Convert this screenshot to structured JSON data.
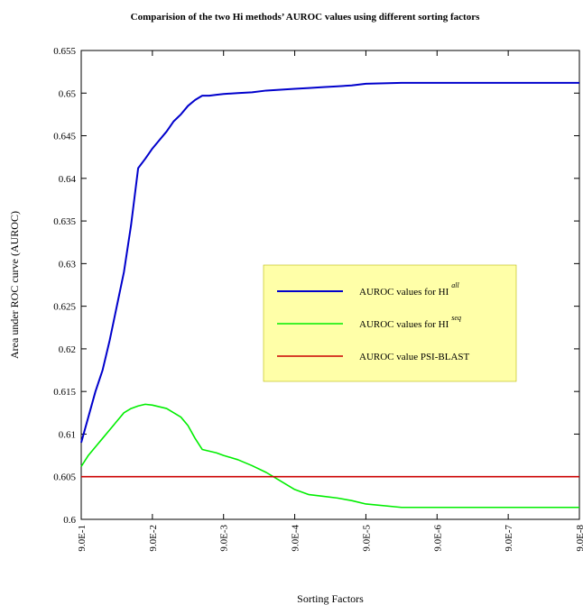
{
  "chart_data": {
    "type": "line",
    "title": "Comparision of the two Hi methods’ AUROC values using different sorting factors",
    "xlabel": "Sorting Factors",
    "ylabel": "Area under ROC curve (AUROC)",
    "ylim": [
      0.6,
      0.655
    ],
    "yticks": [
      "0.6",
      "0.605",
      "0.61",
      "0.615",
      "0.62",
      "0.625",
      "0.63",
      "0.635",
      "0.64",
      "0.645",
      "0.65",
      "0.655"
    ],
    "xlim": [
      0,
      7
    ],
    "xticks": [
      "9.0E-1",
      "9.0E-2",
      "9.0E-3",
      "9.0E-4",
      "9.0E-5",
      "9.0E-6",
      "9.0E-7",
      "9.0E-8"
    ],
    "grid": false,
    "legend_position": "center-right",
    "series": [
      {
        "name": "AUROC values for HI",
        "superscript": "all",
        "color": "#0000cc",
        "x": [
          0,
          0.1,
          0.2,
          0.3,
          0.4,
          0.5,
          0.6,
          0.7,
          0.8,
          0.9,
          1.0,
          1.1,
          1.2,
          1.3,
          1.4,
          1.5,
          1.6,
          1.7,
          1.8,
          1.9,
          2.0,
          2.2,
          2.4,
          2.6,
          2.8,
          3.0,
          3.2,
          3.4,
          3.6,
          3.8,
          4.0,
          4.5,
          5.0,
          6.0,
          7.0
        ],
        "y": [
          0.609,
          0.612,
          0.615,
          0.6175,
          0.621,
          0.625,
          0.629,
          0.6345,
          0.6412,
          0.6423,
          0.6435,
          0.6445,
          0.6455,
          0.6467,
          0.6475,
          0.6485,
          0.6492,
          0.6497,
          0.6497,
          0.6498,
          0.6499,
          0.65,
          0.6501,
          0.6503,
          0.6504,
          0.6505,
          0.6506,
          0.6507,
          0.6508,
          0.6509,
          0.6511,
          0.6512,
          0.6512,
          0.6512,
          0.6512
        ]
      },
      {
        "name": "AUROC values for HI",
        "superscript": "seq",
        "color": "#00ee00",
        "x": [
          0,
          0.1,
          0.2,
          0.3,
          0.4,
          0.5,
          0.6,
          0.7,
          0.8,
          0.9,
          1.0,
          1.1,
          1.2,
          1.3,
          1.4,
          1.5,
          1.6,
          1.7,
          1.8,
          1.9,
          2.0,
          2.2,
          2.4,
          2.6,
          2.8,
          3.0,
          3.2,
          3.4,
          3.6,
          3.8,
          4.0,
          4.5,
          5.0,
          6.0,
          7.0
        ],
        "y": [
          0.6062,
          0.6075,
          0.6085,
          0.6095,
          0.6105,
          0.6115,
          0.6125,
          0.613,
          0.6133,
          0.6135,
          0.6134,
          0.6132,
          0.613,
          0.6125,
          0.612,
          0.611,
          0.6095,
          0.6082,
          0.608,
          0.6078,
          0.6075,
          0.607,
          0.6063,
          0.6055,
          0.6045,
          0.6035,
          0.6029,
          0.6027,
          0.6025,
          0.6022,
          0.6018,
          0.6014,
          0.6014,
          0.6014,
          0.6014
        ]
      },
      {
        "name": "AUROC value PSI-BLAST",
        "superscript": "",
        "color": "#cc0000",
        "x": [
          0,
          7
        ],
        "y": [
          0.605,
          0.605
        ]
      }
    ]
  }
}
